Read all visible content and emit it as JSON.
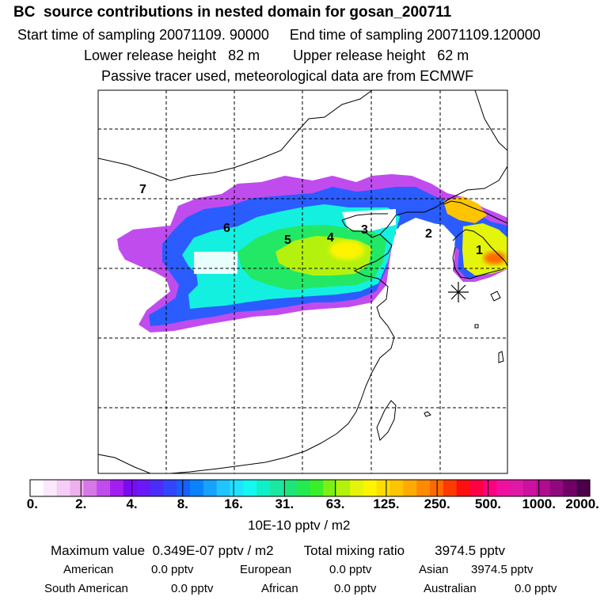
{
  "header": {
    "title": "BC  source contributions in nested domain for gosan_200711",
    "start_label": "Start time of sampling 20071109. 90000",
    "end_label": "End time of sampling 20071109.120000",
    "lower_label": "Lower release height   82 m",
    "upper_label": "Upper release height   62 m",
    "note": "Passive tracer used, meteorological data are from ECMWF"
  },
  "map": {
    "region_labels": [
      "1",
      "2",
      "3",
      "4",
      "5",
      "6",
      "7"
    ],
    "receptor_marker": "star-marker"
  },
  "colorbar": {
    "tick_labels": [
      "0.",
      "2.",
      "4.",
      "8.",
      "16.",
      "31.",
      "63.",
      "125.",
      "250.",
      "500.",
      "1000.",
      "2000."
    ],
    "colors": [
      "#ffffff",
      "#fbe8fb",
      "#f5cef5",
      "#eeb0ee",
      "#d678e8",
      "#c04cee",
      "#a41ef0",
      "#7a0af0",
      "#6a18f8",
      "#4c2cf8",
      "#3246ff",
      "#1660ff",
      "#0a82ff",
      "#16a2ff",
      "#20c4ff",
      "#1ee2ff",
      "#14f8f0",
      "#10f0c8",
      "#18e8a0",
      "#1ce67a",
      "#22ea50",
      "#38f02a",
      "#7cf014",
      "#b4f20e",
      "#e4f40a",
      "#fff400",
      "#ffdc00",
      "#ffc400",
      "#ffaa00",
      "#ff8a00",
      "#ff6a00",
      "#ff3a00",
      "#ff1010",
      "#ff0044",
      "#ff0080",
      "#f010a0",
      "#e018a8",
      "#cc10a0",
      "#b00c90",
      "#90087e",
      "#700066",
      "#4c004a"
    ],
    "unit_label": "10E-10 pptv / m2"
  },
  "summary": {
    "max_label": "Maximum value  0.349E-07 pptv / m2",
    "total_label": "Total mixing ratio",
    "total_value": "3974.5 pptv",
    "american_label": "American",
    "american_value": "0.0 pptv",
    "european_label": "European",
    "european_value": "0.0 pptv",
    "asian_label": "Asian",
    "asian_value": "3974.5 pptv",
    "south_american_label": "South American",
    "south_american_value": "0.0 pptv",
    "african_label": "African",
    "african_value": "0.0 pptv",
    "australian_label": "Australian",
    "australian_value": "0.0 pptv"
  }
}
